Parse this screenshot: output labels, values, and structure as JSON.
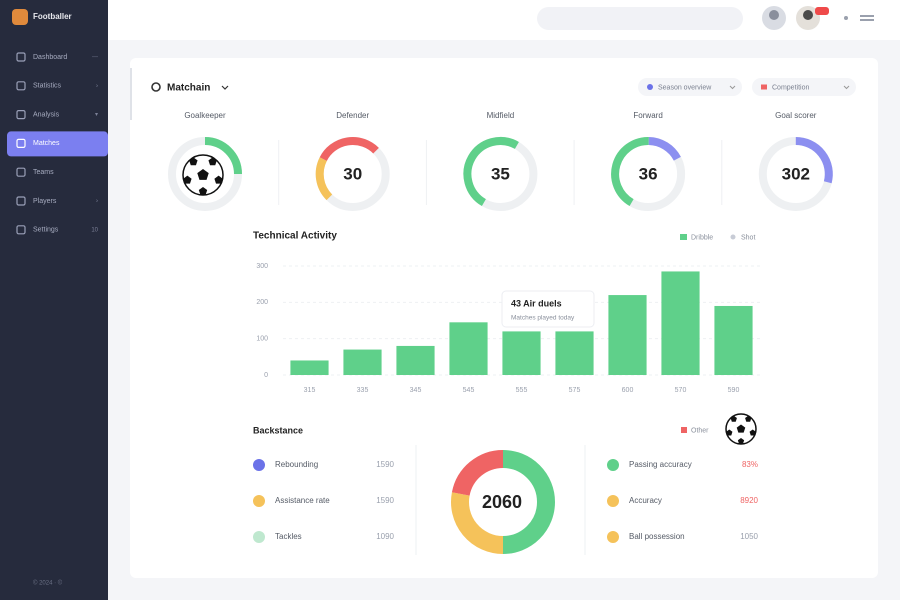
{
  "sidebar": {
    "brand": "Footballer",
    "menu": [
      {
        "label": "Dashboard",
        "extra": "---"
      },
      {
        "label": "Statistics",
        "extra": "›"
      },
      {
        "label": "Analysis",
        "extra": "▾"
      },
      {
        "label": "Matches"
      },
      {
        "label": "Teams"
      },
      {
        "label": "Players",
        "extra": "›"
      },
      {
        "label": "Settings",
        "extra": "10"
      }
    ],
    "footer": "© 2024 · ©"
  },
  "panel": {
    "title": "Matchain",
    "filters": [
      {
        "label": "Season overview",
        "color": "#6b72e8"
      },
      {
        "label": "Competition",
        "color": "#ef6464"
      }
    ]
  },
  "gauges": [
    {
      "label": "Goalkeeper",
      "arcs": [
        {
          "color": "#5fd08a",
          "value": 25
        }
      ]
    },
    {
      "label": "Defender",
      "value": "30",
      "arcs": [
        {
          "color": "#f5c25a",
          "value": 20
        },
        {
          "color": "#ef6464",
          "value": 30
        }
      ]
    },
    {
      "label": "Midfield",
      "value": "35",
      "arcs": [
        {
          "color": "#5fd08a",
          "value": 50
        }
      ]
    },
    {
      "label": "Forward",
      "value": "36",
      "arcs": [
        {
          "color": "#5fd08a",
          "value": 42
        },
        {
          "color": "#8c8ff0",
          "value": 17
        }
      ]
    },
    {
      "label": "Goal scorer",
      "value": "302",
      "arcs": [
        {
          "color": "#8c8ff0",
          "value": 29
        }
      ]
    }
  ],
  "chart_data": {
    "type": "bar",
    "title": "Technical Activity",
    "categories": [
      "315",
      "335",
      "345",
      "545",
      "555",
      "575",
      "600",
      "570",
      "590"
    ],
    "series": [
      {
        "name": "Dribble",
        "color": "#5fd08a",
        "values": [
          40,
          70,
          80,
          145,
          120,
          120,
          220,
          285,
          190
        ]
      },
      {
        "name": "Shot",
        "color": "#c8ccd6",
        "values": [
          null,
          null,
          null,
          null,
          null,
          null,
          null,
          null,
          null
        ]
      }
    ],
    "ylim": [
      0,
      300
    ],
    "yticks": [
      0,
      100,
      200,
      300
    ],
    "grid": true,
    "annotation": {
      "title": "43 Air duels",
      "text": "Matches played today"
    }
  },
  "breakdown": {
    "title": "Backstance",
    "legend": {
      "label": "Other",
      "color": "#ef6464"
    },
    "left": [
      {
        "label": "Rebounding",
        "value": "1590",
        "color": "#6b72e8"
      },
      {
        "label": "Assistance rate",
        "value": "1590",
        "color": "#f5c25a"
      },
      {
        "label": "Tackles",
        "value": "1090",
        "color": "#bfe8cf"
      }
    ],
    "donut": {
      "center": "2060",
      "segments": [
        {
          "color": "#5fd08a",
          "value": 50
        },
        {
          "color": "#f5c25a",
          "value": 28
        },
        {
          "color": "#ef6464",
          "value": 22
        }
      ]
    },
    "right": [
      {
        "label": "Passing accuracy",
        "value": "83%",
        "color": "#5fd08a",
        "value_color": "#ef6464"
      },
      {
        "label": "Accuracy",
        "value": "8920",
        "color": "#f5c25a",
        "value_color": "#ef6464"
      },
      {
        "label": "Ball possession",
        "value": "1050",
        "color": "#f5c25a",
        "value_color": "#9aa0ad"
      }
    ]
  }
}
